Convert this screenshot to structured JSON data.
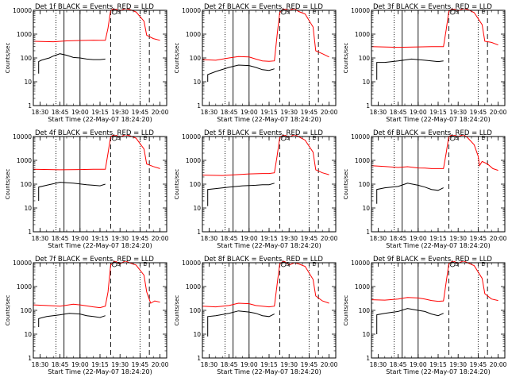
{
  "chart_data": {
    "type": "line",
    "y_scale": "log",
    "ylim": [
      1,
      10000
    ],
    "y_ticks": [
      "1",
      "10",
      "100",
      "1000",
      "10000"
    ],
    "x_ticks": [
      "18:30",
      "18:45",
      "19:00",
      "19:15",
      "19:30",
      "19:45",
      "20:00"
    ],
    "xlim": [
      "18:25",
      "20:05"
    ],
    "grid": false,
    "series_colors": {
      "events": "#000000",
      "lld": "#ff0000"
    },
    "panels": [
      {
        "title": "Det 1f BLACK = Events, RED = LLD",
        "xlabel": "Start Time (22-May-07 18:24:20)",
        "ylabel": "Counts/sec",
        "markers": [
          "S",
          "E"
        ],
        "vlines": {
          "dotted": [
            "18:42",
            "19:45"
          ],
          "solid": [
            "18:48",
            "19:00"
          ],
          "dashed": [
            "19:23",
            "19:52"
          ]
        },
        "lld": {
          "x": [
            "18:25",
            "18:40",
            "18:50",
            "19:00",
            "19:10",
            "19:15",
            "19:19",
            "19:21",
            "19:23",
            "19:26",
            "19:30",
            "19:34",
            "19:37",
            "19:42",
            "19:48",
            "19:50",
            "19:55",
            "20:00"
          ],
          "y": [
            500,
            480,
            520,
            540,
            560,
            550,
            550,
            1800,
            10000,
            13000,
            9500,
            13000,
            11000,
            8500,
            3500,
            900,
            650,
            550
          ]
        },
        "events": {
          "x": [
            "18:29",
            "18:29",
            "18:31",
            "18:34",
            "18:37",
            "18:40",
            "18:45",
            "18:50",
            "18:55",
            "19:00",
            "19:05",
            "19:10",
            "19:15",
            "19:19"
          ],
          "y": [
            22,
            70,
            80,
            90,
            100,
            120,
            150,
            130,
            105,
            100,
            90,
            85,
            85,
            90
          ]
        }
      },
      {
        "title": "Det 2f BLACK = Events, RED = LLD",
        "xlabel": "Start Time (22-May-07 18:24:20)",
        "ylabel": "Counts/sec",
        "markers": [
          "S",
          "E"
        ],
        "vlines": {
          "dotted": [
            "18:42",
            "19:45"
          ],
          "solid": [
            "18:48",
            "19:00"
          ],
          "dashed": [
            "19:23",
            "19:52"
          ]
        },
        "lld": {
          "x": [
            "18:25",
            "18:35",
            "18:45",
            "18:52",
            "19:00",
            "19:05",
            "19:10",
            "19:15",
            "19:19",
            "19:21",
            "19:23",
            "19:26",
            "19:30",
            "19:34",
            "19:37",
            "19:42",
            "19:48",
            "19:50",
            "19:55",
            "20:00"
          ],
          "y": [
            85,
            80,
            100,
            115,
            110,
            90,
            75,
            72,
            75,
            900,
            8000,
            13000,
            10000,
            13000,
            9000,
            7000,
            2000,
            200,
            150,
            110
          ]
        },
        "events": {
          "x": [
            "18:29",
            "18:29",
            "18:35",
            "18:45",
            "18:52",
            "19:00",
            "19:05",
            "19:10",
            "19:15",
            "19:19"
          ],
          "y": [
            10,
            20,
            27,
            40,
            50,
            48,
            40,
            32,
            30,
            35
          ]
        }
      },
      {
        "title": "Det 3f BLACK = Events, RED = LLD",
        "xlabel": "Start Time (22-May-07 18:24:20)",
        "ylabel": "Counts/sec",
        "markers": [
          "S",
          "E"
        ],
        "vlines": {
          "dotted": [
            "18:42",
            "19:45"
          ],
          "solid": [
            "18:48",
            "19:00"
          ],
          "dashed": [
            "19:23",
            "19:52"
          ]
        },
        "lld": {
          "x": [
            "18:25",
            "18:45",
            "19:00",
            "19:10",
            "19:15",
            "19:19",
            "19:21",
            "19:23",
            "19:26",
            "19:30",
            "19:34",
            "19:37",
            "19:42",
            "19:48",
            "19:50",
            "19:55",
            "20:00"
          ],
          "y": [
            300,
            280,
            290,
            300,
            300,
            300,
            1500,
            9000,
            13000,
            9500,
            13000,
            11000,
            8000,
            2500,
            500,
            450,
            350
          ]
        },
        "events": {
          "x": [
            "18:29",
            "18:29",
            "18:35",
            "18:45",
            "18:55",
            "19:05",
            "19:10",
            "19:15",
            "19:19"
          ],
          "y": [
            12,
            65,
            65,
            75,
            90,
            80,
            75,
            70,
            75
          ]
        }
      },
      {
        "title": "Det 4f BLACK = Events, RED = LLD",
        "xlabel": "Start Time (22-May-07 18:24:20)",
        "ylabel": "Counts/sec",
        "markers": [
          "S",
          "E"
        ],
        "vlines": {
          "dotted": [
            "18:42",
            "19:45"
          ],
          "solid": [
            "18:48",
            "19:00"
          ],
          "dashed": [
            "19:23",
            "19:52"
          ]
        },
        "lld": {
          "x": [
            "18:25",
            "18:45",
            "19:00",
            "19:10",
            "19:15",
            "19:19",
            "19:21",
            "19:23",
            "19:26",
            "19:30",
            "19:34",
            "19:37",
            "19:42",
            "19:48",
            "19:50",
            "19:55",
            "20:00"
          ],
          "y": [
            420,
            400,
            410,
            420,
            420,
            420,
            2000,
            10000,
            14000,
            9500,
            13000,
            11000,
            8500,
            3000,
            700,
            550,
            450
          ]
        },
        "events": {
          "x": [
            "18:29",
            "18:29",
            "18:35",
            "18:45",
            "18:55",
            "19:05",
            "19:10",
            "19:15",
            "19:19"
          ],
          "y": [
            20,
            75,
            90,
            120,
            110,
            95,
            90,
            85,
            100
          ]
        }
      },
      {
        "title": "Det 5f BLACK = Events, RED = LLD",
        "xlabel": "Start Time (22-May-07 18:24:20)",
        "ylabel": "Counts/sec",
        "markers": [
          "S",
          "E"
        ],
        "vlines": {
          "dotted": [
            "18:42",
            "19:45"
          ],
          "solid": [
            "18:48",
            "19:00"
          ],
          "dashed": [
            "19:23",
            "19:52"
          ]
        },
        "lld": {
          "x": [
            "18:25",
            "18:40",
            "18:50",
            "19:00",
            "19:10",
            "19:15",
            "19:19",
            "19:21",
            "19:23",
            "19:26",
            "19:30",
            "19:34",
            "19:37",
            "19:42",
            "19:48",
            "19:50",
            "19:55",
            "20:00"
          ],
          "y": [
            240,
            230,
            250,
            270,
            280,
            280,
            300,
            1500,
            9000,
            13000,
            9500,
            12000,
            10000,
            7000,
            2200,
            400,
            300,
            250
          ]
        },
        "events": {
          "x": [
            "18:29",
            "18:29",
            "18:35",
            "18:45",
            "18:55",
            "19:05",
            "19:10",
            "19:15",
            "19:19"
          ],
          "y": [
            12,
            60,
            65,
            75,
            85,
            90,
            95,
            95,
            110
          ]
        }
      },
      {
        "title": "Det 6f BLACK = Events, RED = LLD",
        "xlabel": "Start Time (22-May-07 18:24:20)",
        "ylabel": "Counts/sec",
        "markers": [
          "S",
          "E"
        ],
        "vlines": {
          "dotted": [
            "18:42",
            "19:45"
          ],
          "solid": [
            "18:48",
            "19:00"
          ],
          "dashed": [
            "19:23",
            "19:52"
          ]
        },
        "lld": {
          "x": [
            "18:25",
            "18:35",
            "18:45",
            "18:52",
            "19:00",
            "19:05",
            "19:10",
            "19:15",
            "19:19",
            "19:21",
            "19:23",
            "19:26",
            "19:30",
            "19:34",
            "19:37",
            "19:42",
            "19:45",
            "19:46",
            "19:48",
            "19:52",
            "19:56",
            "20:00"
          ],
          "y": [
            600,
            550,
            500,
            540,
            480,
            470,
            450,
            450,
            450,
            2000,
            10000,
            14000,
            10000,
            12000,
            9000,
            4500,
            1500,
            600,
            900,
            700,
            450,
            380
          ]
        },
        "events": {
          "x": [
            "18:29",
            "18:29",
            "18:35",
            "18:45",
            "18:52",
            "19:00",
            "19:05",
            "19:10",
            "19:15",
            "19:19"
          ],
          "y": [
            15,
            60,
            70,
            80,
            110,
            90,
            75,
            60,
            55,
            70
          ]
        }
      },
      {
        "title": "Det 7f BLACK = Events, RED = LLD",
        "xlabel": "Start Time (22-May-07 18:24:20)",
        "ylabel": "Counts/sec",
        "markers": [
          "S",
          "E"
        ],
        "vlines": {
          "dotted": [
            "18:42",
            "19:45"
          ],
          "solid": [
            "18:48",
            "19:00"
          ],
          "dashed": [
            "19:23",
            "19:52"
          ]
        },
        "lld": {
          "x": [
            "18:25",
            "18:35",
            "18:45",
            "18:55",
            "19:00",
            "19:10",
            "19:15",
            "19:19",
            "19:21",
            "19:23",
            "19:26",
            "19:30",
            "19:34",
            "19:37",
            "19:42",
            "19:48",
            "19:50",
            "19:53",
            "19:56",
            "20:00"
          ],
          "y": [
            170,
            160,
            150,
            180,
            170,
            140,
            130,
            150,
            600,
            8000,
            12000,
            9000,
            12000,
            10000,
            8000,
            3000,
            600,
            200,
            250,
            220
          ]
        },
        "events": {
          "x": [
            "18:29",
            "18:29",
            "18:35",
            "18:45",
            "18:52",
            "19:00",
            "19:05",
            "19:10",
            "19:15",
            "19:19"
          ],
          "y": [
            20,
            45,
            55,
            65,
            75,
            70,
            60,
            55,
            50,
            60
          ]
        }
      },
      {
        "title": "Det 8f BLACK = Events, RED = LLD",
        "xlabel": "Start Time (22-May-07 18:24:20)",
        "ylabel": "Counts/sec",
        "markers": [
          "S",
          "E"
        ],
        "vlines": {
          "dotted": [
            "18:42",
            "19:45"
          ],
          "solid": [
            "18:48",
            "19:00"
          ],
          "dashed": [
            "19:23",
            "19:52"
          ]
        },
        "lld": {
          "x": [
            "18:25",
            "18:35",
            "18:45",
            "18:52",
            "19:00",
            "19:05",
            "19:10",
            "19:15",
            "19:19",
            "19:21",
            "19:23",
            "19:26",
            "19:30",
            "19:34",
            "19:37",
            "19:42",
            "19:48",
            "19:50",
            "19:55",
            "20:00"
          ],
          "y": [
            150,
            140,
            160,
            200,
            190,
            160,
            150,
            140,
            150,
            1200,
            9000,
            13000,
            8000,
            10000,
            9000,
            7000,
            2000,
            400,
            250,
            200
          ]
        },
        "events": {
          "x": [
            "18:29",
            "18:29",
            "18:35",
            "18:45",
            "18:52",
            "19:00",
            "19:05",
            "19:10",
            "19:15",
            "19:19"
          ],
          "y": [
            8,
            55,
            60,
            75,
            95,
            85,
            75,
            60,
            55,
            70
          ]
        }
      },
      {
        "title": "Det 9f BLACK = Events, RED = LLD",
        "xlabel": "Start Time (22-May-07 18:24:20)",
        "ylabel": "Counts/sec",
        "markers": [
          "S",
          "E"
        ],
        "vlines": {
          "dotted": [
            "18:42",
            "19:45"
          ],
          "solid": [
            "18:48",
            "19:00"
          ],
          "dashed": [
            "19:23",
            "19:52"
          ]
        },
        "lld": {
          "x": [
            "18:25",
            "18:35",
            "18:45",
            "18:52",
            "19:00",
            "19:05",
            "19:10",
            "19:15",
            "19:19",
            "19:21",
            "19:23",
            "19:26",
            "19:30",
            "19:34",
            "19:37",
            "19:42",
            "19:48",
            "19:50",
            "19:55",
            "20:00"
          ],
          "y": [
            280,
            270,
            300,
            350,
            330,
            300,
            260,
            240,
            250,
            1500,
            9000,
            13000,
            9500,
            12000,
            10000,
            7500,
            2200,
            500,
            300,
            260
          ]
        },
        "events": {
          "x": [
            "18:29",
            "18:29",
            "18:35",
            "18:45",
            "18:52",
            "19:00",
            "19:05",
            "19:10",
            "19:15",
            "19:19"
          ],
          "y": [
            10,
            65,
            75,
            90,
            120,
            100,
            90,
            70,
            60,
            75
          ]
        }
      }
    ]
  }
}
